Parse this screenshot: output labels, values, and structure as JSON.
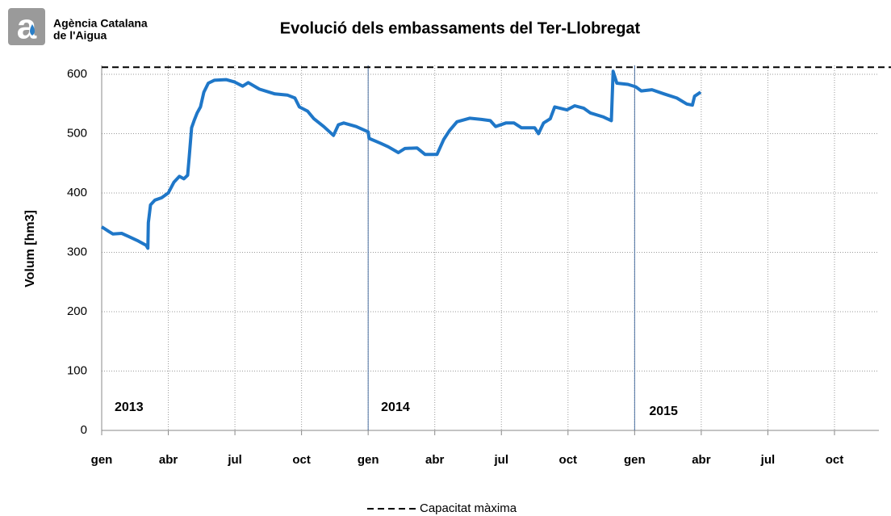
{
  "logo_text": [
    "Agència Catalana",
    "de l'Aigua"
  ],
  "chart_data": {
    "type": "line",
    "title": "Evolució dels embassaments del Ter-Llobregat",
    "y_label": "Volum [hm3]",
    "xlim": [
      0,
      35
    ],
    "xticks": [
      {
        "value": 0,
        "label": "gen"
      },
      {
        "value": 3,
        "label": "abr"
      },
      {
        "value": 6,
        "label": "jul"
      },
      {
        "value": 9,
        "label": "oct"
      },
      {
        "value": 12,
        "label": "gen"
      },
      {
        "value": 15,
        "label": "abr"
      },
      {
        "value": 18,
        "label": "jul"
      },
      {
        "value": 21,
        "label": "oct"
      },
      {
        "value": 24,
        "label": "gen"
      },
      {
        "value": 27,
        "label": "abr"
      },
      {
        "value": 30,
        "label": "jul"
      },
      {
        "value": 33,
        "label": "oct"
      }
    ],
    "ylim": [
      0,
      615
    ],
    "yticks": [
      0,
      100,
      200,
      300,
      400,
      500,
      600
    ],
    "grid": true,
    "year_markers": [
      {
        "label": "2013",
        "x": 0
      },
      {
        "label": "2014",
        "x": 12
      },
      {
        "label": "2015",
        "x": 24
      }
    ],
    "reference_line": {
      "name": "Capacitat màxima",
      "value": 612,
      "color": "#000000"
    },
    "series": [
      {
        "name": "Volum",
        "color": "#1f77c8",
        "x": [
          0,
          0.33,
          0.5,
          0.9,
          1.2,
          1.6,
          2.0,
          2.08,
          2.1,
          2.2,
          2.4,
          2.7,
          3.0,
          3.25,
          3.5,
          3.7,
          3.87,
          3.94,
          4.05,
          4.16,
          4.3,
          4.45,
          4.6,
          4.8,
          5.07,
          5.6,
          5.99,
          6.35,
          6.6,
          7.1,
          7.8,
          8.36,
          8.7,
          8.9,
          9.27,
          9.56,
          10.0,
          10.44,
          10.66,
          10.9,
          11.46,
          12,
          12.04,
          12.55,
          12.9,
          13.36,
          13.65,
          14.2,
          14.56,
          15.1,
          15.4,
          15.66,
          16.0,
          16.57,
          17.1,
          17.5,
          17.74,
          18.2,
          18.57,
          18.9,
          19.5,
          19.67,
          19.9,
          20.2,
          20.4,
          20.95,
          21.3,
          21.7,
          22.0,
          22.6,
          22.95,
          23.03,
          23.2,
          23.7,
          24.05,
          24.3,
          24.78,
          25.33,
          25.9,
          26.35,
          26.6,
          26.7,
          26.97
        ],
        "values": [
          343,
          335,
          331,
          332,
          327,
          320,
          312,
          307,
          350,
          380,
          388,
          392,
          400,
          418,
          428,
          424,
          430,
          460,
          510,
          522,
          535,
          545,
          570,
          585,
          590,
          591,
          587,
          580,
          586,
          575,
          567,
          565,
          560,
          545,
          538,
          525,
          512,
          497,
          515,
          518,
          512,
          503,
          492,
          484,
          478,
          468,
          475,
          476,
          465,
          465,
          490,
          505,
          520,
          526,
          524,
          522,
          512,
          518,
          518,
          510,
          510,
          500,
          518,
          525,
          545,
          540,
          547,
          543,
          535,
          528,
          522,
          605,
          585,
          583,
          579,
          572,
          574,
          567,
          560,
          550,
          548,
          563,
          570
        ]
      }
    ]
  }
}
